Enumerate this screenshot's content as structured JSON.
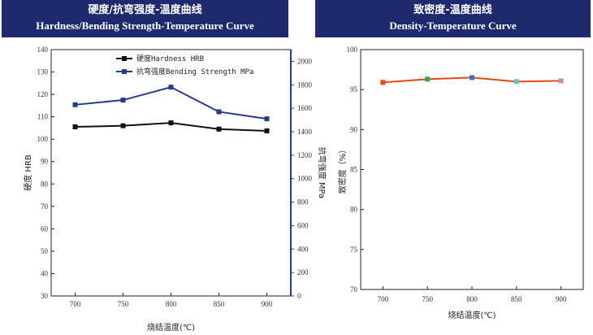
{
  "panels": {
    "left": {
      "title_cn": "硬度/抗弯强度-温度曲线",
      "title_en": "Hardness/Bending Strength-Temperature Curve"
    },
    "right": {
      "title_cn": "致密度-温度曲线",
      "title_en": "Density-Temperature Curve"
    }
  },
  "colors": {
    "header_bg": "#1f2a6e",
    "hardness": "#111111",
    "bending": "#2b3990",
    "density": "#e8471c"
  },
  "chart_data": [
    {
      "type": "line",
      "title": "硬度/抗弯强度-温度曲线",
      "xlabel": "烧结温度(℃)",
      "ylabel": "硬度 HRB",
      "y2label": "抗弯强度 MPa",
      "x": [
        700,
        750,
        800,
        850,
        900
      ],
      "xlim": [
        675,
        925
      ],
      "ylim": [
        30,
        140
      ],
      "y2lim": [
        0,
        2100
      ],
      "xticks": [
        700,
        750,
        800,
        850,
        900
      ],
      "yticks": [
        30,
        40,
        50,
        60,
        70,
        80,
        90,
        100,
        110,
        120,
        130,
        140
      ],
      "y2ticks": [
        0,
        200,
        400,
        600,
        800,
        1000,
        1200,
        1400,
        1600,
        1800,
        2000
      ],
      "series": [
        {
          "name": "硬度Hardness HRB",
          "axis": "left",
          "values": [
            105.5,
            106,
            107.3,
            104.5,
            103.7
          ]
        },
        {
          "name": "抗弯强度Bending Strength MPa",
          "axis": "right",
          "values": [
            1630,
            1670,
            1780,
            1570,
            1510
          ]
        }
      ],
      "legend": "top-center"
    },
    {
      "type": "line",
      "title": "致密度-温度曲线",
      "xlabel": "烧结温度(℃)",
      "ylabel": "致密度（%）",
      "x": [
        700,
        750,
        800,
        850,
        900
      ],
      "xlim": [
        675,
        925
      ],
      "ylim": [
        70,
        100
      ],
      "xticks": [
        700,
        750,
        800,
        850,
        900
      ],
      "yticks": [
        70,
        75,
        80,
        85,
        90,
        95,
        100
      ],
      "series": [
        {
          "name": "致密度",
          "values": [
            95.9,
            96.3,
            96.5,
            96.0,
            96.1
          ],
          "marker_colors": [
            "#e8471c",
            "#2aa85a",
            "#3f6fc4",
            "#5bc4d8",
            "#c78ac8"
          ]
        }
      ]
    }
  ]
}
